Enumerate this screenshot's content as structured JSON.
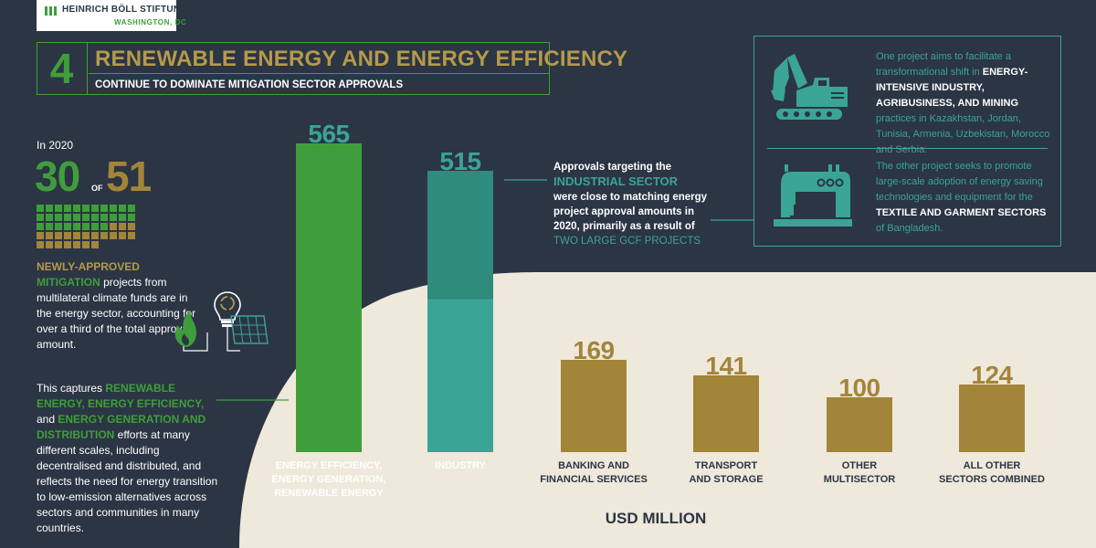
{
  "logo": {
    "name": "HEINRICH BÖLL STIFTUNG",
    "location": "WASHINGTON, DC"
  },
  "header": {
    "number": "4",
    "title": "RENEWABLE ENERGY AND ENERGY EFFICIENCY",
    "subtitle": "CONTINUE TO DOMINATE MITIGATION SECTOR APPROVALS"
  },
  "stats": {
    "year_label": "In 2020",
    "count": "30",
    "of_label": "OF",
    "total": "51",
    "highlighted_count": 30,
    "total_count": 51
  },
  "left_text": {
    "p1_hl1": "NEWLY-APPROVED",
    "p1_hl2": "MITIGATION",
    "p1_rest": " projects from multilateral climate funds are in the energy sector, accounting for over a third of the total approval amount.",
    "p2_lead": "This captures ",
    "p2_hl1": "RENEWABLE ENERGY, ENERGY EFFICIENCY,",
    "p2_and": " and ",
    "p2_hl2": "ENERGY GENERATION AND DISTRIBUTION",
    "p2_rest": " efforts at many different scales, including decentralised and distributed, and reflects the need for energy transition to low-emission alternatives across sectors and communities in many countries."
  },
  "industry_callout": {
    "lead": "Approvals targeting the",
    "highlight": "INDUSTRIAL SECTOR",
    "body": " were close to matching energy project approval amounts in 2020, primarily as a result of ",
    "highlight2": "TWO LARGE GCF PROJECTS"
  },
  "info_box": {
    "p1_a": "One project aims to facilitate a transformational shift in ",
    "p1_b": "ENERGY-INTENSIVE INDUSTRY, AGRIBUSINESS, AND MINING",
    "p1_c": " practices in Kazakhstan, Jordan, Tunisia, Armenia, Uzbekistan, Morocco and Serbia.",
    "p2_a": "The other project seeks to promote large-scale adoption of energy saving technologies and equipment for the ",
    "p2_b": "TEXTILE AND GARMENT SECTORS",
    "p2_c": " of Bangladesh.",
    "icons": [
      "excavator-icon",
      "sewing-machine-icon"
    ]
  },
  "energy_icons": [
    "flame-icon",
    "lightbulb-recycle-icon",
    "solar-panel-icon"
  ],
  "colors": {
    "background": "#2b3544",
    "cream": "#efe9dc",
    "green": "#3f9e3b",
    "teal": "#3aa497",
    "teal_dark": "#2f8b7c",
    "gold": "#a3853a",
    "gold_text": "#b59a4a",
    "white": "#ffffff"
  },
  "chart_data": {
    "type": "bar",
    "categories": [
      "ENERGY EFFICIENCY, ENERGY GENERATION, RENEWABLE ENERGY",
      "INDUSTRY",
      "BANKING AND FINANCIAL SERVICES",
      "TRANSPORT AND STORAGE",
      "OTHER MULTISECTOR",
      "ALL OTHER SECTORS COMBINED"
    ],
    "category_lines": [
      [
        "ENERGY EFFICIENCY,",
        "ENERGY GENERATION,",
        "RENEWABLE ENERGY"
      ],
      [
        "INDUSTRY"
      ],
      [
        "BANKING AND",
        "FINANCIAL SERVICES"
      ],
      [
        "TRANSPORT",
        "AND STORAGE"
      ],
      [
        "OTHER",
        "MULTISECTOR"
      ],
      [
        "ALL OTHER",
        "SECTORS COMBINED"
      ]
    ],
    "values": [
      565,
      515,
      169,
      141,
      100,
      124
    ],
    "value_labels": [
      "565",
      "515",
      "169",
      "141",
      "100",
      "124"
    ],
    "industry_gcf_projects_value": 235,
    "bar_colors": [
      "#3f9e3b",
      "#3aa497",
      "#a3853a",
      "#a3853a",
      "#a3853a",
      "#a3853a"
    ],
    "label_colors": [
      "#ffffff",
      "#ffffff",
      "#2b3544",
      "#2b3544",
      "#2b3544",
      "#2b3544"
    ],
    "value_colors": [
      "#3aa497",
      "#3aa497",
      "#a3853a",
      "#a3853a",
      "#a3853a",
      "#a3853a"
    ],
    "unit_label": "USD MILLION",
    "ylim": [
      0,
      565
    ],
    "grid": false,
    "legend": "none"
  }
}
